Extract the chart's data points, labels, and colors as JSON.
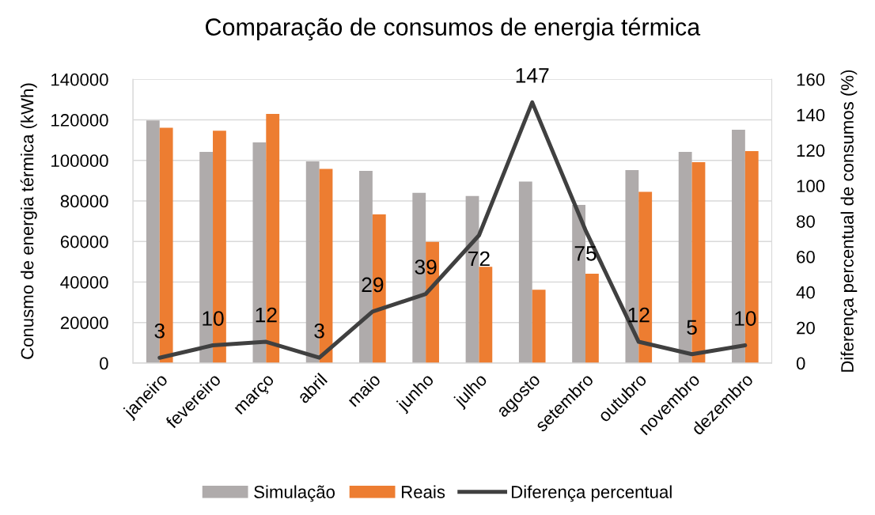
{
  "chart_data": {
    "type": "bar",
    "title": "Comparação de consumos de energia térmica",
    "ylabel": "Conusmo de energia térmica (kWh)",
    "y2label": "Diferença percentual de consumos (%)",
    "categories": [
      "janeiro",
      "fevereiro",
      "março",
      "abril",
      "maio",
      "junho",
      "julho",
      "agosto",
      "setembro",
      "outubro",
      "novembro",
      "dezembro"
    ],
    "series": [
      {
        "name": "Simulação",
        "color": "#afabab",
        "values": [
          119700,
          104200,
          108900,
          99500,
          94800,
          84000,
          82400,
          89600,
          78000,
          95200,
          104200,
          115100
        ]
      },
      {
        "name": "Reais",
        "color": "#ed7d31",
        "values": [
          116100,
          114600,
          122900,
          95800,
          73400,
          59800,
          47500,
          36200,
          44100,
          84500,
          99100,
          104600
        ]
      },
      {
        "name": "Diferença percentual",
        "type": "line",
        "axis": "y2",
        "color": "#404040",
        "values": [
          3,
          10,
          12,
          3,
          29,
          39,
          72,
          147,
          75,
          12,
          5,
          10
        ],
        "value_labels": [
          "3",
          "10",
          "12",
          "3",
          "29",
          "39",
          "72",
          "147",
          "75",
          "12",
          "5",
          "10"
        ]
      }
    ],
    "ylim": [
      0,
      140000
    ],
    "yticks": [
      0,
      20000,
      40000,
      60000,
      80000,
      100000,
      120000,
      140000
    ],
    "y2lim": [
      0,
      160
    ],
    "y2ticks": [
      0,
      20,
      40,
      60,
      80,
      100,
      120,
      140,
      160
    ],
    "grid": "y",
    "legend": "bottom",
    "line_style": "solid"
  }
}
